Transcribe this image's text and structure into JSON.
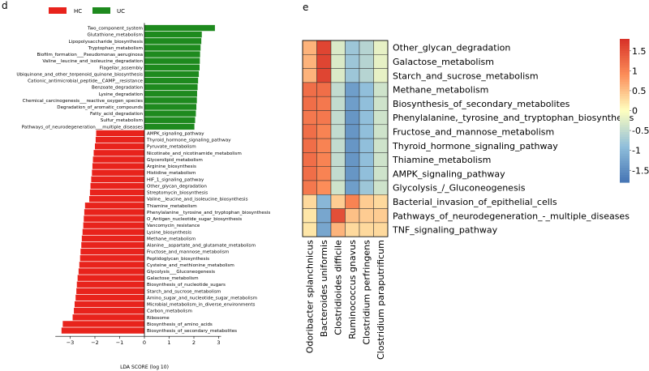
{
  "panel_d": {
    "letter": "d",
    "legend": [
      {
        "label": "HC",
        "color": "#e8231c"
      },
      {
        "label": "UC",
        "color": "#1e8a1e"
      }
    ],
    "xlabel": "LDA SCORE (log 10)"
  },
  "panel_e": {
    "letter": "e"
  },
  "chart_data": [
    {
      "type": "bar",
      "orientation": "horizontal",
      "xlabel": "LDA SCORE (log 10)",
      "xlim": [
        -3.7,
        3.2
      ],
      "xticks": [
        -3,
        -2,
        -1,
        0,
        1,
        2,
        3
      ],
      "legend": [
        "HC",
        "UC"
      ],
      "legend_position": "top-left",
      "series": [
        {
          "name": "UC",
          "color": "#1e8a1e",
          "categories": [
            "Two_component_system",
            "Glutathione_metabolism",
            "Lipopolysaccharide_biosynthesis",
            "Tryptophan_metabolism",
            "Biofilm_formation___Pseudomonas_aeruginosa",
            "Valine__leucine_and_isoleucine_degradation",
            "Flagellar_assembly",
            "Ubiquinone_and_other_terpenoid_quinone_biosynthesis",
            "Cationic_antimicrobial_peptide__CAMP__resistance",
            "Benzoate_degradation",
            "Lysine_degradation",
            "Chemical_carcinogenesis___reactive_oxygen_species",
            "Degradation_of_aromatic_compounds",
            "Fatty_acid_degradation",
            "Sulfur_metabolism",
            "Pathways_of_neurodegeneration___multiple_diseases"
          ],
          "values": [
            2.85,
            2.32,
            2.3,
            2.27,
            2.25,
            2.24,
            2.23,
            2.2,
            2.17,
            2.15,
            2.13,
            2.12,
            2.1,
            2.08,
            2.05,
            2.02
          ]
        },
        {
          "name": "HC",
          "color": "#e8231c",
          "categories": [
            "AMPK_signaling_pathway",
            "Thyroid_hormone_signaling_pathway",
            "Pyruvate_metabolism",
            "Nicotinate_and_nicotinamide_metabolism",
            "Glycerolipid_metabolism",
            "Arginine_biosynthesis",
            "Histidine_metabolism",
            "HIF_1_signaling_pathway",
            "Other_glycan_degradation",
            "Streptomycin_biosynthesis",
            "Valine__leucine_and_isoleucine_biosynthesis",
            "Thiamine_metabolism",
            "Phenylalanine__tyrosine_and_tryptophan_biosynthesis",
            "O_Antigen_nucleotide_sugar_biosynthesis",
            "Vancomycin_resistance",
            "Lysine_biosynthesis",
            "Methane_metabolism",
            "Alanine__aspartate_and_glutamate_metabolism",
            "Fructose_and_mannose_metabolism",
            "Peptidoglycan_biosynthesis",
            "Cysteine_and_methionine_metabolism",
            "Glycolysis___Gluconeogenesis",
            "Galactose_metabolism",
            "Biosynthesis_of_nucleotide_sugars",
            "Starch_and_sucrose_metabolism",
            "Amino_sugar_and_nucleotide_sugar_metabolism",
            "Microbial_metabolism_in_diverse_environments",
            "Carbon_metabolism",
            "Ribosome",
            "Biosynthesis_of_amino_acids",
            "Biosynthesis_of_secondary_metabolites"
          ],
          "values": [
            -1.95,
            -1.97,
            -2.0,
            -2.05,
            -2.08,
            -2.1,
            -2.12,
            -2.15,
            -2.18,
            -2.2,
            -2.23,
            -2.4,
            -2.43,
            -2.45,
            -2.47,
            -2.5,
            -2.53,
            -2.55,
            -2.58,
            -2.6,
            -2.63,
            -2.66,
            -2.7,
            -2.73,
            -2.75,
            -2.78,
            -2.82,
            -2.85,
            -2.9,
            -3.3,
            -3.35
          ]
        }
      ]
    },
    {
      "type": "heatmap",
      "rows": [
        "Other_glycan_degradation",
        "Galactose_metabolism",
        "Starch_and_sucrose_metabolism",
        "Methane_metabolism",
        "Biosynthesis_of_secondary_metabolites",
        "Phenylalanine,_tyrosine_and_tryptophan_biosynthesis",
        "Fructose_and_mannose_metabolism",
        "Thyroid_hormone_signaling_pathway",
        "Thiamine_metabolism",
        "AMPK_signaling_pathway",
        "Glycolysis_/_Gluconeogenesis",
        "Bacterial_invasion_of_epithelial_cells",
        "Pathways_of_neurodegeneration_-_multiple_diseases",
        "TNF_signaling_pathway"
      ],
      "columns": [
        "Odoribacter splanchnicus",
        "Bacteroides uniformis",
        "Clostridioides difficile",
        "Ruminococcus gnavus",
        "Clostridium perfringens",
        "Clostridium paraputrificum"
      ],
      "values": [
        [
          0.6,
          1.6,
          -0.3,
          -0.8,
          -0.6,
          -0.2
        ],
        [
          0.6,
          1.6,
          -0.3,
          -0.8,
          -0.6,
          -0.2
        ],
        [
          0.6,
          1.6,
          -0.3,
          -0.8,
          -0.6,
          -0.2
        ],
        [
          1.2,
          1.2,
          -0.5,
          -1.3,
          -0.9,
          -0.4
        ],
        [
          1.2,
          1.1,
          -0.5,
          -1.3,
          -0.9,
          -0.4
        ],
        [
          1.1,
          1.1,
          -0.5,
          -1.4,
          -0.9,
          -0.4
        ],
        [
          1.2,
          1.0,
          -0.5,
          -1.4,
          -0.9,
          -0.4
        ],
        [
          1.2,
          1.0,
          -0.5,
          -1.4,
          -0.9,
          -0.4
        ],
        [
          1.2,
          1.0,
          -0.5,
          -1.4,
          -0.9,
          -0.4
        ],
        [
          1.2,
          1.0,
          -0.5,
          -1.4,
          -0.9,
          -0.4
        ],
        [
          1.1,
          0.9,
          -0.4,
          -1.3,
          -0.8,
          -0.4
        ],
        [
          0.3,
          -1.0,
          0.4,
          1.0,
          0.4,
          0.3
        ],
        [
          0.2,
          -1.2,
          1.5,
          0.5,
          0.4,
          0.4
        ],
        [
          0.2,
          -1.2,
          0.6,
          0.3,
          0.3,
          0.3
        ]
      ],
      "colorbar": {
        "min": -1.8,
        "max": 1.8,
        "ticks": [
          1.5,
          1,
          0.5,
          0,
          -0.5,
          -1,
          -1.5
        ],
        "colors": [
          "#4575b4",
          "#ffffbf",
          "#d73027"
        ]
      }
    }
  ]
}
